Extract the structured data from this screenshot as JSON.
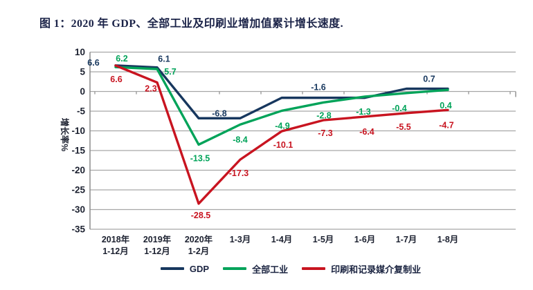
{
  "title": "图 1：2020 年 GDP、全部工业及印刷业增加值累计增长速度.",
  "y_axis": {
    "label": "增长率%",
    "ticks": [
      10,
      5,
      0,
      -5,
      -10,
      -15,
      -20,
      -25,
      -30,
      -35
    ]
  },
  "x_axis": {
    "tick_lines": [
      [
        "2018年",
        "1-12月"
      ],
      [
        "2019年",
        "1-12月"
      ],
      [
        "2020年",
        "1-2月"
      ],
      [
        "1-3月"
      ],
      [
        "1-4月"
      ],
      [
        "1-5月"
      ],
      [
        "1-6月"
      ],
      [
        "1-7月"
      ],
      [
        "1-8月"
      ]
    ]
  },
  "legend": [
    {
      "label": "GDP",
      "color": "#17375e"
    },
    {
      "label": "全部工业",
      "color": "#00a359"
    },
    {
      "label": "印刷和记录媒介复制业",
      "color": "#c81420"
    }
  ],
  "chart_data": {
    "type": "line",
    "title": "图 1：2020 年 GDP、全部工业及印刷业增加值累计增长速度",
    "xlabel": "",
    "ylabel": "增长率%",
    "ylim": [
      -35,
      10
    ],
    "grid": true,
    "legend_position": "bottom",
    "categories": [
      "2018年1-12月",
      "2019年1-12月",
      "2020年1-2月",
      "1-3月",
      "1-4月",
      "1-5月",
      "1-6月",
      "1-7月",
      "1-8月"
    ],
    "series": [
      {
        "name": "GDP",
        "color": "#17375e",
        "values": [
          6.6,
          6.1,
          -6.8,
          -6.8,
          -1.6,
          -1.6,
          -1.6,
          0.7,
          0.7
        ],
        "point_labels": [
          "6.6",
          "6.1",
          "-6.8",
          null,
          null,
          "-1.6",
          null,
          null,
          "0.7"
        ]
      },
      {
        "name": "全部工业",
        "color": "#00a359",
        "values": [
          6.2,
          5.7,
          -13.5,
          -8.4,
          -4.9,
          -2.8,
          -1.3,
          -0.4,
          0.4
        ],
        "point_labels": [
          "6.2",
          "5.7",
          "-13.5",
          "-8.4",
          "-4.9",
          "-2.8",
          "-1.3",
          "-0.4",
          "0.4"
        ]
      },
      {
        "name": "印刷和记录媒介复制业",
        "color": "#c81420",
        "values": [
          6.6,
          2.3,
          -28.5,
          -17.3,
          -10.1,
          -7.3,
          -6.4,
          -5.5,
          -4.7
        ],
        "point_labels": [
          "6.6",
          "2.3",
          "-28.5",
          "-17.3",
          "-10.1",
          "-7.3",
          "-6.4",
          "-5.5",
          "-4.7"
        ]
      }
    ]
  }
}
